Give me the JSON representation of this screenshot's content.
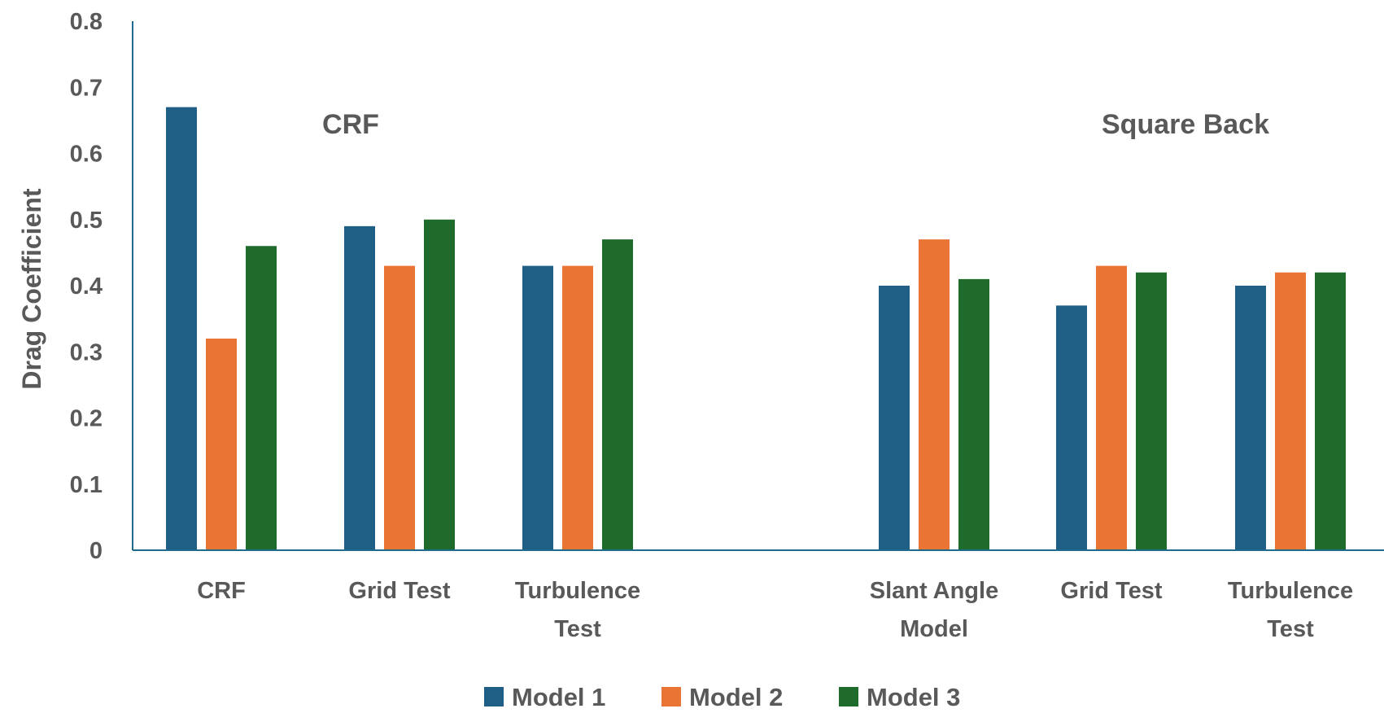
{
  "chart_data": {
    "type": "bar",
    "title": "",
    "xlabel": "",
    "ylabel": "Drag Coefficient",
    "ylim": [
      0,
      0.8
    ],
    "yticks": [
      "0",
      "0.1",
      "0.2",
      "0.3",
      "0.4",
      "0.5",
      "0.6",
      "0.7",
      "0.8"
    ],
    "groups": [
      {
        "label": "CRF",
        "categories": [
          [
            "CRF"
          ],
          [
            "Grid Test"
          ],
          [
            "Turbulence",
            "Test"
          ]
        ]
      },
      {
        "label": "Square Back",
        "categories": [
          [
            "Slant Angle",
            "Model"
          ],
          [
            "Grid Test"
          ],
          [
            "Turbulence",
            "Test"
          ]
        ]
      }
    ],
    "categories": [
      "CRF",
      "Grid Test",
      "Turbulence Test",
      "Slant Angle Model",
      "Grid Test",
      "Turbulence Test"
    ],
    "series": [
      {
        "name": "Model 1",
        "color": "#1f5f86",
        "values": [
          0.67,
          0.49,
          0.43,
          0.4,
          0.37,
          0.4
        ]
      },
      {
        "name": "Model 2",
        "color": "#e97434",
        "values": [
          0.32,
          0.43,
          0.43,
          0.47,
          0.43,
          0.42
        ]
      },
      {
        "name": "Model 3",
        "color": "#1e6b2c",
        "values": [
          0.46,
          0.5,
          0.47,
          0.41,
          0.42,
          0.42
        ]
      }
    ],
    "grid": false,
    "legend_position": "bottom"
  }
}
